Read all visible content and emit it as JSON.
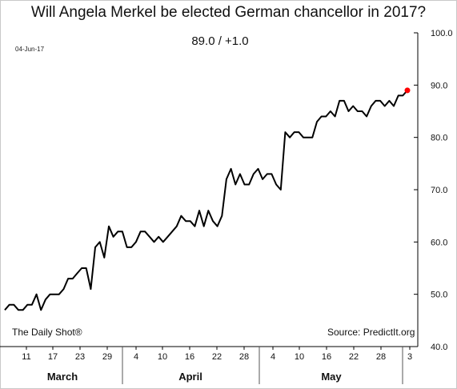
{
  "chart_data": {
    "type": "line",
    "title": "Will Angela Merkel be elected German chancellor in 2017?",
    "date_stamp": "04-Jun-17",
    "last_value_text": "89.0  /  +1.0",
    "source_left": "The Daily Shot®",
    "source_right": "Source:  PredictIt.org",
    "ylim": [
      40,
      100
    ],
    "y_ticks": [
      "40.0",
      "50.0",
      "60.0",
      "70.0",
      "80.0",
      "90.0",
      "100.0"
    ],
    "x_tick_labels": [
      "11",
      "17",
      "23",
      "29",
      "4",
      "10",
      "16",
      "22",
      "28",
      "4",
      "10",
      "16",
      "22",
      "28",
      "3"
    ],
    "month_labels": [
      "March",
      "April",
      "May"
    ],
    "series": [
      {
        "color": "#000000",
        "values": [
          47,
          48,
          48,
          47,
          47,
          48,
          48,
          50,
          47,
          49,
          50,
          50,
          50,
          51,
          53,
          53,
          54,
          55,
          55,
          51,
          59,
          60,
          57,
          63,
          61,
          62,
          62,
          59,
          59,
          60,
          62,
          62,
          61,
          60,
          61,
          60,
          61,
          62,
          63,
          65,
          64,
          64,
          63,
          66,
          63,
          66,
          64,
          63,
          65,
          72,
          74,
          71,
          73,
          71,
          71,
          73,
          74,
          72,
          73,
          73,
          71,
          70,
          81,
          80,
          81,
          81,
          80,
          80,
          80,
          83,
          84,
          84,
          85,
          84,
          87,
          87,
          85,
          86,
          85,
          85,
          84,
          86,
          87,
          87,
          86,
          87,
          86,
          88,
          88,
          89
        ]
      }
    ],
    "last_marker_color": "#ff0000"
  }
}
